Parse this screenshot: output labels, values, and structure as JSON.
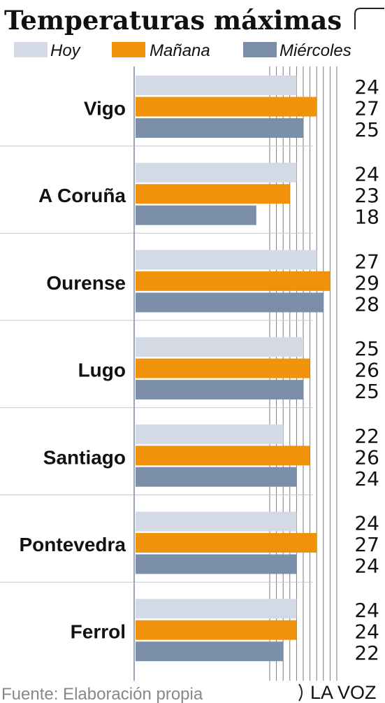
{
  "colors": {
    "hoy": "#d4dae5",
    "manana": "#f0920a",
    "miercoles": "#7b8fab",
    "axis": "#9aa6b8",
    "grid": "#7a7a7a",
    "separator": "#c8c8c8",
    "text": "#111111",
    "source_text": "#888888"
  },
  "footer": {
    "source": "Fuente: Elaboración propia",
    "brand": "LA VOZ"
  },
  "chart_data": {
    "type": "bar",
    "orientation": "horizontal",
    "title": "Temperaturas máximas",
    "xlim": [
      0,
      30
    ],
    "legend_position": "top",
    "categories": [
      "Vigo",
      "A Coruña",
      "Ourense",
      "Lugo",
      "Santiago",
      "Pontevedra",
      "Ferrol"
    ],
    "series": [
      {
        "name": "Hoy",
        "color_key": "hoy",
        "values": [
          24,
          24,
          27,
          25,
          22,
          24,
          24
        ]
      },
      {
        "name": "Mañana",
        "color_key": "manana",
        "values": [
          27,
          23,
          29,
          26,
          26,
          27,
          24
        ]
      },
      {
        "name": "Miércoles",
        "color_key": "miercoles",
        "values": [
          25,
          18,
          28,
          25,
          24,
          24,
          22
        ]
      }
    ]
  }
}
